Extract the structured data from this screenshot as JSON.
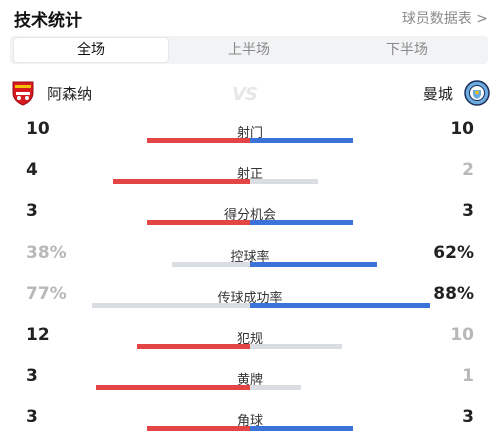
{
  "header": {
    "title": "技术统计",
    "link": "球员数据表 >"
  },
  "tabs": [
    {
      "label": "全场",
      "active": true
    },
    {
      "label": "上半场",
      "active": false
    },
    {
      "label": "下半场",
      "active": false
    }
  ],
  "teams": {
    "home": {
      "name": "阿森纳",
      "badge": "arsenal-badge-icon"
    },
    "away": {
      "name": "曼城",
      "badge": "man-city-badge-icon"
    },
    "vs": "VS"
  },
  "colors": {
    "home": "#e34444",
    "away": "#3b73d8",
    "muted_bar": "#dadde2"
  },
  "stats": [
    {
      "label": "射门",
      "home": "10",
      "away": "10",
      "home_share": 0.5,
      "away_share": 0.5,
      "home_lead": true,
      "away_lead": true
    },
    {
      "label": "射正",
      "home": "4",
      "away": "2",
      "home_share": 0.67,
      "away_share": 0.33,
      "home_lead": true,
      "away_lead": false
    },
    {
      "label": "得分机会",
      "home": "3",
      "away": "3",
      "home_share": 0.5,
      "away_share": 0.5,
      "home_lead": true,
      "away_lead": true
    },
    {
      "label": "控球率",
      "home": "38%",
      "away": "62%",
      "home_share": 0.38,
      "away_share": 0.62,
      "home_lead": false,
      "away_lead": true
    },
    {
      "label": "传球成功率",
      "home": "77%",
      "away": "88%",
      "home_share": 0.77,
      "away_share": 0.88,
      "home_lead": false,
      "away_lead": true
    },
    {
      "label": "犯规",
      "home": "12",
      "away": "10",
      "home_share": 0.55,
      "away_share": 0.45,
      "home_lead": true,
      "away_lead": false
    },
    {
      "label": "黄牌",
      "home": "3",
      "away": "1",
      "home_share": 0.75,
      "away_share": 0.25,
      "home_lead": true,
      "away_lead": false
    },
    {
      "label": "角球",
      "home": "3",
      "away": "3",
      "home_share": 0.5,
      "away_share": 0.5,
      "home_lead": true,
      "away_lead": true
    }
  ]
}
